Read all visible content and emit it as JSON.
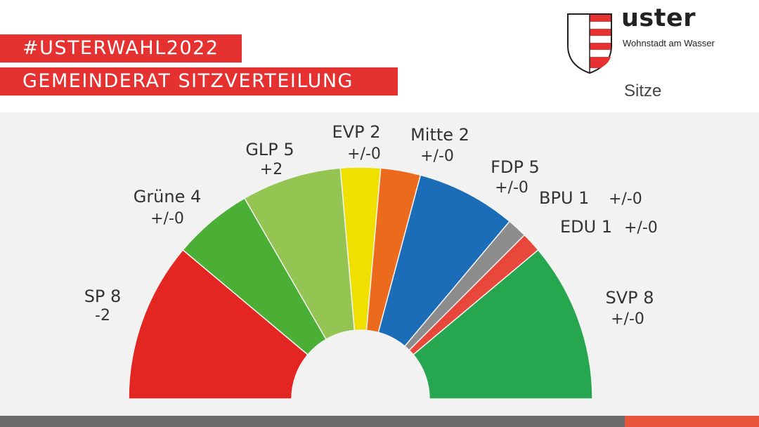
{
  "header": {
    "hashtag": "#USTERWAHL2022",
    "title": "GEMEINDERAT SITZVERTEILUNG",
    "unit_label": "Sitze"
  },
  "logo": {
    "name": "uster",
    "tagline": "Wohnstadt am Wasser"
  },
  "colors": {
    "header_red": "#e63131",
    "background": "#f2f2f2",
    "footer_gray": "#6b6b6b",
    "footer_accent": "#e8543c"
  },
  "chart_data": {
    "type": "pie",
    "subtype": "parliament-semicircle",
    "total_seats": 36,
    "parties": [
      {
        "name": "SP",
        "seats": 8,
        "change": "-2",
        "label": "SP 8",
        "color": "#e32622"
      },
      {
        "name": "Grüne",
        "seats": 4,
        "change": "+/-0",
        "label": "Grüne 4",
        "color": "#4aaf34"
      },
      {
        "name": "GLP",
        "seats": 5,
        "change": "+2",
        "label": "GLP 5",
        "color": "#94c452"
      },
      {
        "name": "EVP",
        "seats": 2,
        "change": "+/-0",
        "label": "EVP 2",
        "color": "#f0e000"
      },
      {
        "name": "Mitte",
        "seats": 2,
        "change": "+/-0",
        "label": "Mitte 2",
        "color": "#ec6a1c"
      },
      {
        "name": "FDP",
        "seats": 5,
        "change": "+/-0",
        "label": "FDP 5",
        "color": "#1b6db7"
      },
      {
        "name": "BPU",
        "seats": 1,
        "change": "+/-0",
        "label": "BPU 1",
        "color": "#8c8c8c"
      },
      {
        "name": "EDU",
        "seats": 1,
        "change": "+/-0",
        "label": "EDU 1",
        "color": "#e8473c"
      },
      {
        "name": "SVP",
        "seats": 8,
        "change": "+/-0",
        "label": "SVP 8",
        "color": "#27a650"
      }
    ]
  }
}
